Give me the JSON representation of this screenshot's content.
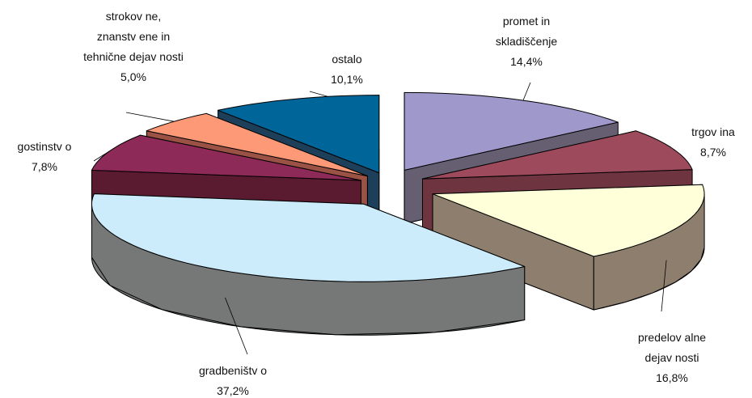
{
  "chart_data": {
    "type": "pie",
    "title": "",
    "style": "3d-exploded",
    "start_angle_deg": 0,
    "direction": "clockwise",
    "slices": [
      {
        "lines": [
          "promet in",
          "skladiščenje"
        ],
        "pct_text": "14,4%",
        "value": 14.4,
        "color": "#9E98CB"
      },
      {
        "lines": [
          "trgov ina"
        ],
        "pct_text": "8,7%",
        "value": 8.7,
        "color": "#9E4A5D"
      },
      {
        "lines": [
          "predelov alne",
          "dejav nosti"
        ],
        "pct_text": "16,8%",
        "value": 16.8,
        "color": "#FFFFDA"
      },
      {
        "lines": [
          "gradbeništv o"
        ],
        "pct_text": "37,2%",
        "value": 37.2,
        "color": "#CCEBFB"
      },
      {
        "lines": [
          "gostinstv o"
        ],
        "pct_text": "7,8%",
        "value": 7.8,
        "color": "#8D2A57"
      },
      {
        "lines": [
          "strokov ne,",
          "znanstv ene in",
          "tehnične dejav nosti"
        ],
        "pct_text": "5,0%",
        "value": 5.0,
        "color": "#FD9977"
      },
      {
        "lines": [
          "ostalo"
        ],
        "pct_text": "10,1%",
        "value": 10.1,
        "color": "#006699"
      }
    ],
    "side_colors": [
      "#665F72",
      "#6E3440",
      "#8E7E6D",
      "#767878",
      "#5A1A30",
      "#9A5244",
      "#1E3F59"
    ]
  }
}
